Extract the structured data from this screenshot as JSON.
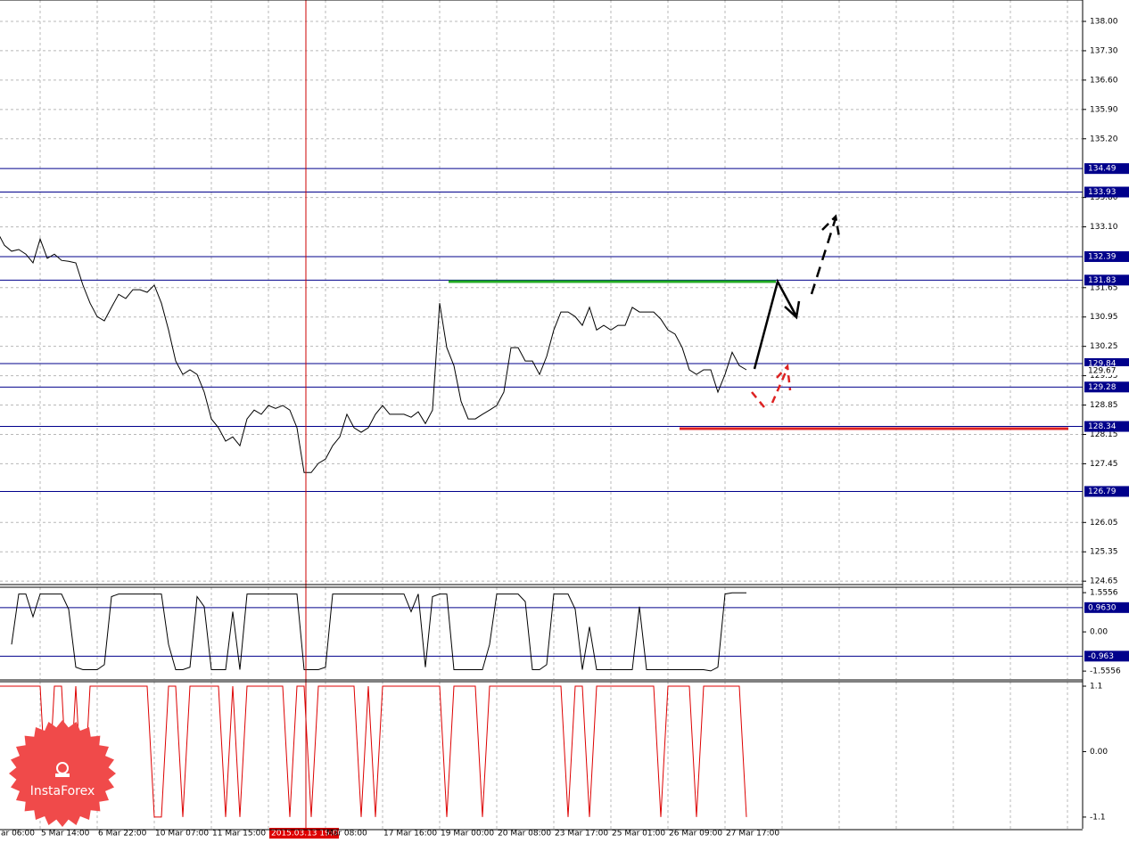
{
  "chart_data": [
    {
      "type": "line",
      "categories": [
        "ar 06:00",
        null,
        null,
        null,
        null,
        null,
        "5 Mar 14:00",
        null,
        null,
        null,
        null,
        null,
        null,
        null,
        "6 Mar 22:00",
        null,
        null,
        null,
        null,
        null,
        null,
        null,
        "10 Mar 07:00",
        null,
        null,
        null,
        null,
        null,
        null,
        null,
        "11 Mar 15:00",
        null,
        null,
        null,
        null,
        null,
        null,
        null,
        "2015.03.13 19:00",
        null,
        null,
        null,
        null,
        null,
        null,
        null,
        "Mar 08:00",
        null,
        null,
        null,
        null,
        null,
        null,
        null,
        "17 Mar 16:00",
        null,
        null,
        null,
        null,
        null,
        null,
        null,
        "19 Mar 00:00",
        null,
        null,
        null,
        null,
        null,
        null,
        null,
        "20 Mar 08:00",
        null,
        null,
        null,
        null,
        null,
        null,
        null,
        "23 Mar 17:00",
        null,
        null,
        null,
        null,
        null,
        null,
        null,
        "25 Mar 01:00",
        null,
        null,
        null,
        null,
        null,
        null,
        null,
        "26 Mar 09:00",
        null,
        null,
        null,
        null,
        null,
        null,
        null,
        "27 Mar 17:00",
        null,
        null,
        null
      ],
      "series": [
        {
          "color": "#000000",
          "values": [
            132.98,
            132.66,
            132.52,
            132.56,
            132.45,
            132.24,
            132.81,
            132.35,
            132.45,
            132.3,
            132.28,
            132.24,
            131.71,
            131.28,
            130.96,
            130.86,
            131.18,
            131.49,
            131.39,
            131.6,
            131.6,
            131.54,
            131.71,
            131.28,
            130.64,
            129.9,
            129.58,
            129.69,
            129.58,
            129.16,
            128.52,
            128.31,
            127.99,
            128.09,
            127.88,
            128.52,
            128.73,
            128.63,
            128.84,
            128.77,
            128.84,
            128.73,
            128.31,
            127.24,
            127.24,
            127.46,
            127.56,
            127.88,
            128.09,
            128.63,
            128.31,
            128.2,
            128.31,
            128.63,
            128.84,
            128.63,
            128.63,
            128.63,
            128.56,
            128.69,
            128.41,
            128.73,
            131.28,
            130.22,
            129.79,
            128.94,
            128.52,
            128.52,
            128.63,
            128.73,
            128.84,
            129.16,
            130.22,
            130.22,
            129.9,
            129.9,
            129.58,
            130.01,
            130.64,
            131.07,
            131.07,
            130.96,
            130.75,
            131.18,
            130.64,
            130.75,
            130.64,
            130.75,
            130.75,
            131.18,
            131.07,
            131.07,
            131.07,
            130.9,
            130.64,
            130.54,
            130.22,
            129.69,
            129.58,
            129.69,
            129.69,
            129.16,
            129.58,
            130.11,
            129.79,
            129.69
          ]
        }
      ],
      "ylim": [
        124.59,
        138.51
      ],
      "yticks": [
        {
          "value": 138,
          "label": "138.00"
        },
        {
          "value": 137.3,
          "label": "137.30"
        },
        {
          "value": 136.6,
          "label": "136.60"
        },
        {
          "value": 135.9,
          "label": "135.90"
        },
        {
          "value": 135.2,
          "label": "135.20"
        },
        {
          "value": 133.8,
          "label": "133.80"
        },
        {
          "value": 133.1,
          "label": "133.10"
        },
        {
          "value": 131.65,
          "label": "131.65"
        },
        {
          "value": 130.95,
          "label": "130.95"
        },
        {
          "value": 130.25,
          "label": "130.25"
        },
        {
          "value": 129.55,
          "label": "129.55"
        },
        {
          "value": 128.85,
          "label": "128.85"
        },
        {
          "value": 128.15,
          "label": "128.15"
        },
        {
          "value": 127.45,
          "label": "127.45"
        },
        {
          "value": 126.05,
          "label": "126.05"
        },
        {
          "value": 125.35,
          "label": "125.35"
        },
        {
          "value": 124.65,
          "label": "124.65"
        }
      ],
      "current_price": {
        "value": 129.67,
        "label": "129.67"
      },
      "levels": [
        {
          "value": 134.49,
          "label": "134.49"
        },
        {
          "value": 133.93,
          "label": "133.93"
        },
        {
          "value": 132.39,
          "label": "132.39"
        },
        {
          "value": 131.83,
          "label": "131.83"
        },
        {
          "value": 129.84,
          "label": "129.84"
        },
        {
          "value": 129.28,
          "label": "129.28"
        },
        {
          "value": 128.34,
          "label": "128.34"
        },
        {
          "value": 126.79,
          "label": "126.79"
        }
      ],
      "level_color": "#00008b",
      "grid": true,
      "highlighted_category": 38
    },
    {
      "type": "line",
      "series": [
        {
          "color": "#000000",
          "values": [
            null,
            null,
            -0.5,
            1.5,
            1.5,
            0.6,
            1.5,
            1.5,
            1.5,
            1.5,
            0.9,
            -1.4,
            -1.5,
            -1.5,
            -1.5,
            -1.3,
            1.4,
            1.5,
            1.5,
            1.5,
            1.5,
            1.5,
            1.5,
            1.5,
            -0.5,
            -1.5,
            -1.5,
            -1.4,
            1.4,
            1.0,
            -1.5,
            -1.5,
            -1.5,
            0.8,
            -1.5,
            1.5,
            1.5,
            1.5,
            1.5,
            1.5,
            1.5,
            1.5,
            1.5,
            -1.5,
            -1.5,
            -1.5,
            -1.4,
            1.5,
            1.5,
            1.5,
            1.5,
            1.5,
            1.5,
            1.5,
            1.5,
            1.5,
            1.5,
            1.5,
            0.8,
            1.5,
            -1.4,
            1.4,
            1.5,
            1.5,
            -1.5,
            -1.5,
            -1.5,
            -1.5,
            -1.5,
            -0.5,
            1.5,
            1.5,
            1.5,
            1.5,
            1.2,
            -1.5,
            -1.5,
            -1.3,
            1.5,
            1.5,
            1.5,
            0.9,
            -1.5,
            0.2,
            -1.5,
            -1.5,
            -1.5,
            -1.5,
            -1.5,
            -1.5,
            1.0,
            -1.5,
            -1.5,
            -1.5,
            -1.5,
            -1.5,
            -1.5,
            -1.5,
            -1.5,
            -1.5,
            -1.55,
            -1.4,
            1.5,
            1.55,
            1.55,
            1.55
          ]
        }
      ],
      "ylim": [
        -1.87,
        1.77
      ],
      "yticks": [
        1.5556,
        {
          "value": 0,
          "label": "0.00"
        },
        -1.5556
      ],
      "levels": [
        {
          "value": 0.963,
          "label": "0.9630"
        },
        {
          "value": -0.963,
          "label": "-0.963"
        }
      ],
      "level_color": "#00008b"
    },
    {
      "type": "line",
      "series": [
        {
          "color": "#dd0000",
          "values": [
            1.1,
            1.1,
            1.1,
            1.1,
            1.1,
            1.1,
            1.1,
            -1.1,
            1.1,
            1.1,
            -1.1,
            1.1,
            -1.1,
            1.1,
            1.1,
            1.1,
            1.1,
            1.1,
            1.1,
            1.1,
            1.1,
            1.1,
            -1.1,
            -1.1,
            1.1,
            1.1,
            -1.1,
            1.1,
            1.1,
            1.1,
            1.1,
            1.1,
            -1.1,
            1.1,
            -1.1,
            1.1,
            1.1,
            1.1,
            1.1,
            1.1,
            1.1,
            -1.1,
            1.1,
            1.1,
            -1.1,
            1.1,
            1.1,
            1.1,
            1.1,
            1.1,
            1.1,
            -1.1,
            1.1,
            -1.1,
            1.1,
            1.1,
            1.1,
            1.1,
            1.1,
            1.1,
            1.1,
            1.1,
            1.1,
            -1.1,
            1.1,
            1.1,
            1.1,
            1.1,
            -1.1,
            1.1,
            1.1,
            1.1,
            1.1,
            1.1,
            1.1,
            1.1,
            1.1,
            1.1,
            1.1,
            1.1,
            -1.1,
            1.1,
            1.1,
            -1.1,
            1.1,
            1.1,
            1.1,
            1.1,
            1.1,
            1.1,
            1.1,
            1.1,
            1.1,
            -1.1,
            1.1,
            1.1,
            1.1,
            1.1,
            -1.1,
            1.1,
            1.1,
            1.1,
            1.1,
            1.1,
            1.1,
            -1.1
          ]
        }
      ],
      "ylim": [
        -1.296,
        1.175
      ],
      "yticks": [
        1.1,
        {
          "value": 0,
          "label": "0.00"
        },
        -1.1
      ]
    }
  ],
  "watermark": "InstaForex"
}
